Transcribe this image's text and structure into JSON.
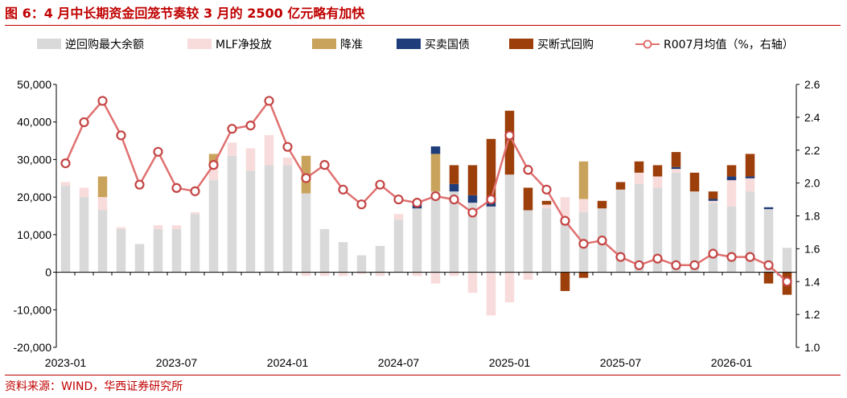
{
  "title": "图 6：4 月中长期资金回笼节奏较 3 月的 2500 亿元略有加快",
  "source": "资料来源：WIND，华西证券研究所",
  "chart_data": {
    "type": "bar+line",
    "x_tick_labels": [
      "2023-01",
      "2023-07",
      "2024-01",
      "2024-07",
      "2025-01",
      "2025-07",
      "2026-01"
    ],
    "x_tick_month_index": [
      0,
      6,
      12,
      18,
      24,
      30,
      36
    ],
    "months": [
      "2023-01",
      "2023-02",
      "2023-03",
      "2023-04",
      "2023-05",
      "2023-06",
      "2023-07",
      "2023-08",
      "2023-09",
      "2023-10",
      "2023-11",
      "2023-12",
      "2024-01",
      "2024-02",
      "2024-03",
      "2024-04",
      "2024-05",
      "2024-06",
      "2024-07",
      "2024-08",
      "2024-09",
      "2024-10",
      "2024-11",
      "2024-12",
      "2025-01",
      "2025-02",
      "2025-03",
      "2025-04",
      "2025-05",
      "2025-06",
      "2025-07",
      "2025-08",
      "2025-09",
      "2025-10",
      "2025-11",
      "2025-12",
      "2026-01",
      "2026-02",
      "2026-03",
      "2026-04"
    ],
    "y_left": {
      "min": -20000,
      "max": 50000,
      "ticks": [
        -20000,
        -10000,
        0,
        10000,
        20000,
        30000,
        40000,
        50000
      ],
      "tick_labels": [
        "-20,000",
        "-10,000",
        "0",
        "10,000",
        "20,000",
        "30,000",
        "40,000",
        "50,000"
      ]
    },
    "y_right": {
      "min": 1.0,
      "max": 2.6,
      "ticks": [
        1.0,
        1.2,
        1.4,
        1.6,
        1.8,
        2.0,
        2.2,
        2.4,
        2.6
      ],
      "tick_labels": [
        "1.0",
        "1.2",
        "1.4",
        "1.6",
        "1.8",
        "2.0",
        "2.2",
        "2.4",
        "2.6"
      ]
    },
    "series": [
      {
        "name": "逆回购最大余额",
        "kind": "bar",
        "axis": "left",
        "color": "#d9d9d9",
        "values": [
          23000,
          20000,
          16500,
          11500,
          7500,
          11500,
          11500,
          15500,
          24500,
          31000,
          27000,
          28500,
          28500,
          21000,
          11500,
          8000,
          4500,
          7000,
          14000,
          17000,
          21500,
          21500,
          18500,
          17500,
          26000,
          16500,
          17000,
          14500,
          16000,
          17000,
          22000,
          23500,
          22500,
          26500,
          21500,
          18500,
          17500,
          21500,
          16800,
          6500
        ]
      },
      {
        "name": "MLF净投放",
        "kind": "bar",
        "axis": "left",
        "color": "#f8dcdc",
        "values": [
          1000,
          2500,
          3500,
          500,
          0,
          1000,
          1000,
          500,
          3500,
          3500,
          6000,
          8000,
          2000,
          -1000,
          -1000,
          -1000,
          -500,
          -1000,
          1500,
          -1000,
          -3000,
          -1000,
          -5500,
          -11500,
          -8000,
          -2000,
          1000,
          5500,
          3500,
          0,
          0,
          3000,
          3000,
          1000,
          0,
          500,
          7000,
          3500,
          0,
          0
        ]
      },
      {
        "name": "降准",
        "kind": "bar",
        "axis": "left",
        "color": "#c9a35c",
        "values": [
          0,
          0,
          5500,
          0,
          0,
          0,
          0,
          0,
          3500,
          0,
          0,
          0,
          0,
          10000,
          0,
          0,
          0,
          0,
          0,
          0,
          10000,
          0,
          0,
          0,
          0,
          0,
          0,
          0,
          10000,
          0,
          0,
          0,
          0,
          0,
          0,
          0,
          0,
          0,
          0,
          0
        ]
      },
      {
        "name": "买卖国债",
        "kind": "bar",
        "axis": "left",
        "color": "#1f3d7a",
        "values": [
          0,
          0,
          0,
          0,
          0,
          0,
          0,
          0,
          0,
          0,
          0,
          0,
          0,
          0,
          0,
          0,
          0,
          0,
          0,
          1000,
          2000,
          2000,
          2000,
          1000,
          0,
          0,
          0,
          0,
          0,
          0,
          0,
          0,
          0,
          500,
          0,
          500,
          1000,
          500,
          500,
          0
        ]
      },
      {
        "name": "买断式回购",
        "kind": "bar",
        "axis": "left",
        "color": "#9c3f0a",
        "values": [
          0,
          0,
          0,
          0,
          0,
          0,
          0,
          0,
          0,
          0,
          0,
          0,
          0,
          0,
          0,
          0,
          0,
          0,
          0,
          0,
          0,
          5000,
          8000,
          17000,
          17000,
          6000,
          1000,
          -5000,
          -1500,
          2000,
          2000,
          3000,
          3000,
          4000,
          5000,
          2000,
          3000,
          6000,
          -3000,
          -6000
        ]
      },
      {
        "name": "R007月均值（%，右轴）",
        "kind": "line",
        "axis": "right",
        "color": "#e07070",
        "values": [
          2.12,
          2.37,
          2.5,
          2.29,
          1.99,
          2.19,
          1.97,
          1.95,
          2.11,
          2.33,
          2.35,
          2.5,
          2.22,
          2.03,
          2.11,
          1.96,
          1.87,
          1.99,
          1.9,
          1.88,
          1.92,
          1.9,
          1.82,
          1.9,
          2.29,
          2.08,
          1.96,
          1.77,
          1.63,
          1.65,
          1.55,
          1.5,
          1.54,
          1.5,
          1.5,
          1.57,
          1.55,
          1.55,
          1.5,
          1.4
        ]
      }
    ],
    "legend_position": "top",
    "grid": false
  }
}
